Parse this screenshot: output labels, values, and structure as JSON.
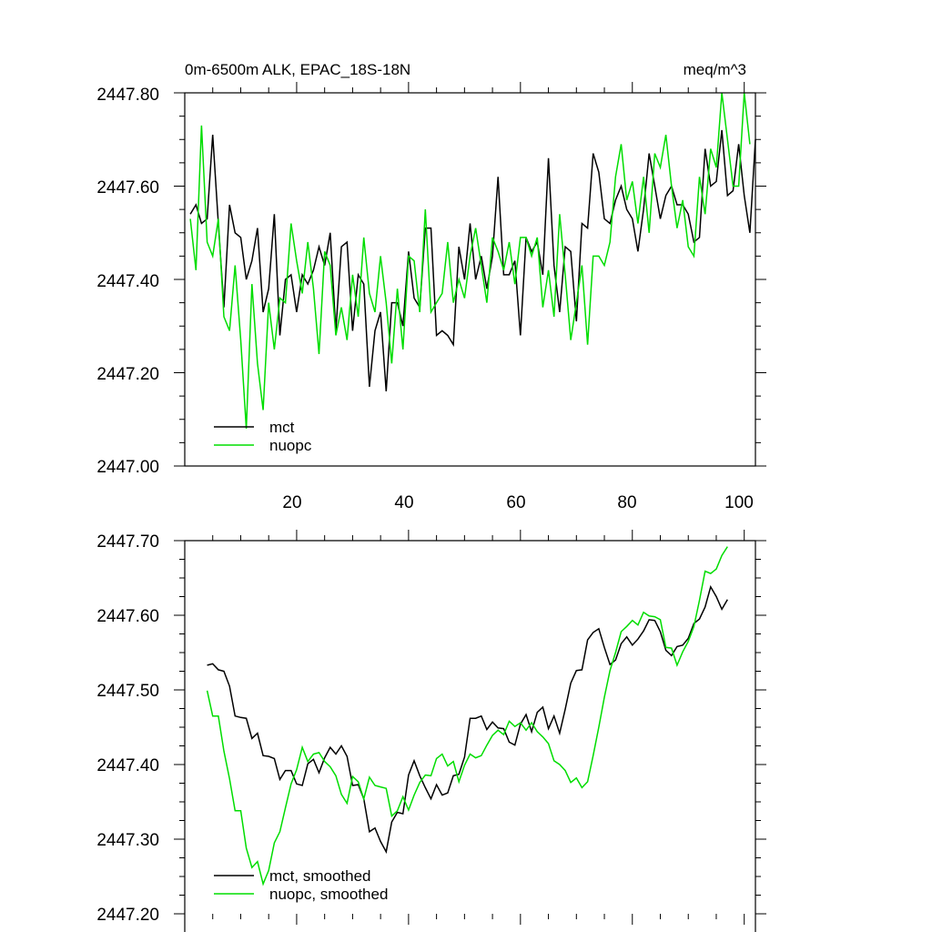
{
  "chart_data": [
    {
      "type": "line",
      "title": "0m-6500m ALK, EPAC_18S-18N",
      "units": "meq/m^3",
      "xlim": [
        0,
        102
      ],
      "ylim": [
        2447.0,
        2447.8
      ],
      "yticks": [
        "2447.00",
        "2447.20",
        "2447.40",
        "2447.60",
        "2447.80"
      ],
      "xticks": [
        "20",
        "40",
        "60",
        "80",
        "100"
      ],
      "legend_position": "bottom-left",
      "colors": {
        "mct": "#000000",
        "nuopc": "#00dd00"
      },
      "series": [
        {
          "name": "mct",
          "values": [
            2447.54,
            2447.56,
            2447.52,
            2447.53,
            2447.71,
            2447.52,
            2447.34,
            2447.56,
            2447.5,
            2447.49,
            2447.4,
            2447.44,
            2447.51,
            2447.33,
            2447.38,
            2447.54,
            2447.28,
            2447.4,
            2447.41,
            2447.33,
            2447.41,
            2447.39,
            2447.42,
            2447.47,
            2447.43,
            2447.5,
            2447.29,
            2447.47,
            2447.48,
            2447.29,
            2447.41,
            2447.39,
            2447.17,
            2447.29,
            2447.33,
            2447.16,
            2447.35,
            2447.35,
            2447.3,
            2447.46,
            2447.36,
            2447.34,
            2447.51,
            2447.51,
            2447.28,
            2447.29,
            2447.28,
            2447.26,
            2447.47,
            2447.4,
            2447.52,
            2447.4,
            2447.45,
            2447.38,
            2447.45,
            2447.62,
            2447.41,
            2447.41,
            2447.44,
            2447.28,
            2447.49,
            2447.46,
            2447.48,
            2447.41,
            2447.66,
            2447.43,
            2447.33,
            2447.47,
            2447.46,
            2447.31,
            2447.52,
            2447.51,
            2447.67,
            2447.63,
            2447.53,
            2447.52,
            2447.57,
            2447.6,
            2447.55,
            2447.53,
            2447.46,
            2447.55,
            2447.67,
            2447.6,
            2447.53,
            2447.58,
            2447.6,
            2447.56,
            2447.56,
            2447.54,
            2447.48,
            2447.49,
            2447.68,
            2447.6,
            2447.61,
            2447.72,
            2447.58,
            2447.59,
            2447.69,
            2447.58,
            2447.5,
            2447.7
          ]
        },
        {
          "name": "nuopc",
          "values": [
            2447.53,
            2447.42,
            2447.73,
            2447.48,
            2447.45,
            2447.53,
            2447.32,
            2447.29,
            2447.43,
            2447.27,
            2447.08,
            2447.39,
            2447.22,
            2447.12,
            2447.35,
            2447.25,
            2447.36,
            2447.35,
            2447.52,
            2447.44,
            2447.37,
            2447.48,
            2447.38,
            2447.24,
            2447.46,
            2447.43,
            2447.28,
            2447.34,
            2447.27,
            2447.41,
            2447.32,
            2447.49,
            2447.37,
            2447.33,
            2447.45,
            2447.35,
            2447.22,
            2447.38,
            2447.25,
            2447.45,
            2447.44,
            2447.33,
            2447.55,
            2447.33,
            2447.35,
            2447.37,
            2447.48,
            2447.35,
            2447.4,
            2447.36,
            2447.45,
            2447.51,
            2447.43,
            2447.35,
            2447.49,
            2447.46,
            2447.42,
            2447.48,
            2447.39,
            2447.49,
            2447.49,
            2447.45,
            2447.49,
            2447.34,
            2447.42,
            2447.32,
            2447.54,
            2447.41,
            2447.27,
            2447.35,
            2447.43,
            2447.26,
            2447.45,
            2447.45,
            2447.43,
            2447.48,
            2447.62,
            2447.69,
            2447.57,
            2447.61,
            2447.52,
            2447.62,
            2447.5,
            2447.67,
            2447.64,
            2447.71,
            2447.6,
            2447.51,
            2447.57,
            2447.47,
            2447.45,
            2447.62,
            2447.54,
            2447.68,
            2447.64,
            2447.8,
            2447.7,
            2447.6,
            2447.6,
            2447.8,
            2447.69
          ]
        }
      ]
    },
    {
      "type": "line",
      "xlim": [
        0,
        102
      ],
      "ylim": [
        2447.2,
        2447.7
      ],
      "yticks": [
        "2447.20",
        "2447.30",
        "2447.40",
        "2447.50",
        "2447.60",
        "2447.70"
      ],
      "legend_position": "bottom-left",
      "colors": {
        "mct": "#000000",
        "nuopc": "#00dd00"
      },
      "series": [
        {
          "name": "mct, smoothed",
          "x_start": 4,
          "values": [
            2447.533,
            2447.535,
            2447.527,
            2447.525,
            2447.505,
            2447.465,
            2447.463,
            2447.462,
            2447.435,
            2447.442,
            2447.412,
            2447.411,
            2447.408,
            2447.38,
            2447.392,
            2447.392,
            2447.374,
            2447.372,
            2447.401,
            2447.407,
            2447.389,
            2447.409,
            2447.423,
            2447.414,
            2447.425,
            2447.411,
            2447.372,
            2447.373,
            2447.354,
            2447.31,
            2447.315,
            2447.297,
            2447.283,
            2447.323,
            2447.336,
            2447.334,
            2447.386,
            2447.405,
            2447.385,
            2447.369,
            2447.354,
            2447.373,
            2447.359,
            2447.362,
            2447.385,
            2447.387,
            2447.41,
            2447.462,
            2447.462,
            2447.465,
            2447.447,
            2447.457,
            2447.449,
            2447.448,
            2447.43,
            2447.426,
            2447.454,
            2447.467,
            2447.444,
            2447.47,
            2447.477,
            2447.448,
            2447.465,
            2447.442,
            2447.474,
            2447.509,
            2447.526,
            2447.527,
            2447.567,
            2447.577,
            2447.582,
            2447.557,
            2447.534,
            2447.54,
            2447.562,
            2447.571,
            2447.56,
            2447.568,
            2447.579,
            2447.594,
            2447.593,
            2447.578,
            2447.553,
            2447.546,
            2447.558,
            2447.56,
            2447.569,
            2447.589,
            2447.595,
            2447.611,
            2447.638,
            2447.625,
            2447.608,
            2447.621
          ]
        },
        {
          "name": "nuopc, smoothed",
          "x_start": 4,
          "values": [
            2447.499,
            2447.465,
            2447.465,
            2447.418,
            2447.381,
            2447.338,
            2447.338,
            2447.288,
            2447.262,
            2447.27,
            2447.24,
            2447.258,
            2447.295,
            2447.31,
            2447.342,
            2447.374,
            2447.393,
            2447.423,
            2447.404,
            2447.414,
            2447.416,
            2447.404,
            2447.397,
            2447.385,
            2447.36,
            2447.348,
            2447.384,
            2447.377,
            2447.354,
            2447.383,
            2447.372,
            2447.37,
            2447.368,
            2447.331,
            2447.338,
            2447.357,
            2447.339,
            2447.359,
            2447.376,
            2447.386,
            2447.385,
            2447.408,
            2447.414,
            2447.398,
            2447.404,
            2447.377,
            2447.399,
            2447.414,
            2447.409,
            2447.412,
            2447.426,
            2447.439,
            2447.446,
            2447.44,
            2447.458,
            2447.451,
            2447.456,
            2447.446,
            2447.456,
            2447.444,
            2447.437,
            2447.428,
            2447.405,
            2447.4,
            2447.392,
            2447.376,
            2447.382,
            2447.369,
            2447.377,
            2447.412,
            2447.45,
            2447.49,
            2447.526,
            2447.55,
            2447.578,
            2447.585,
            2447.593,
            2447.587,
            2447.604,
            2447.599,
            2447.598,
            2447.594,
            2447.557,
            2447.556,
            2447.533,
            2447.551,
            2447.565,
            2447.585,
            2447.62,
            2447.659,
            2447.656,
            2447.662,
            2447.68,
            2447.692
          ]
        }
      ]
    }
  ]
}
